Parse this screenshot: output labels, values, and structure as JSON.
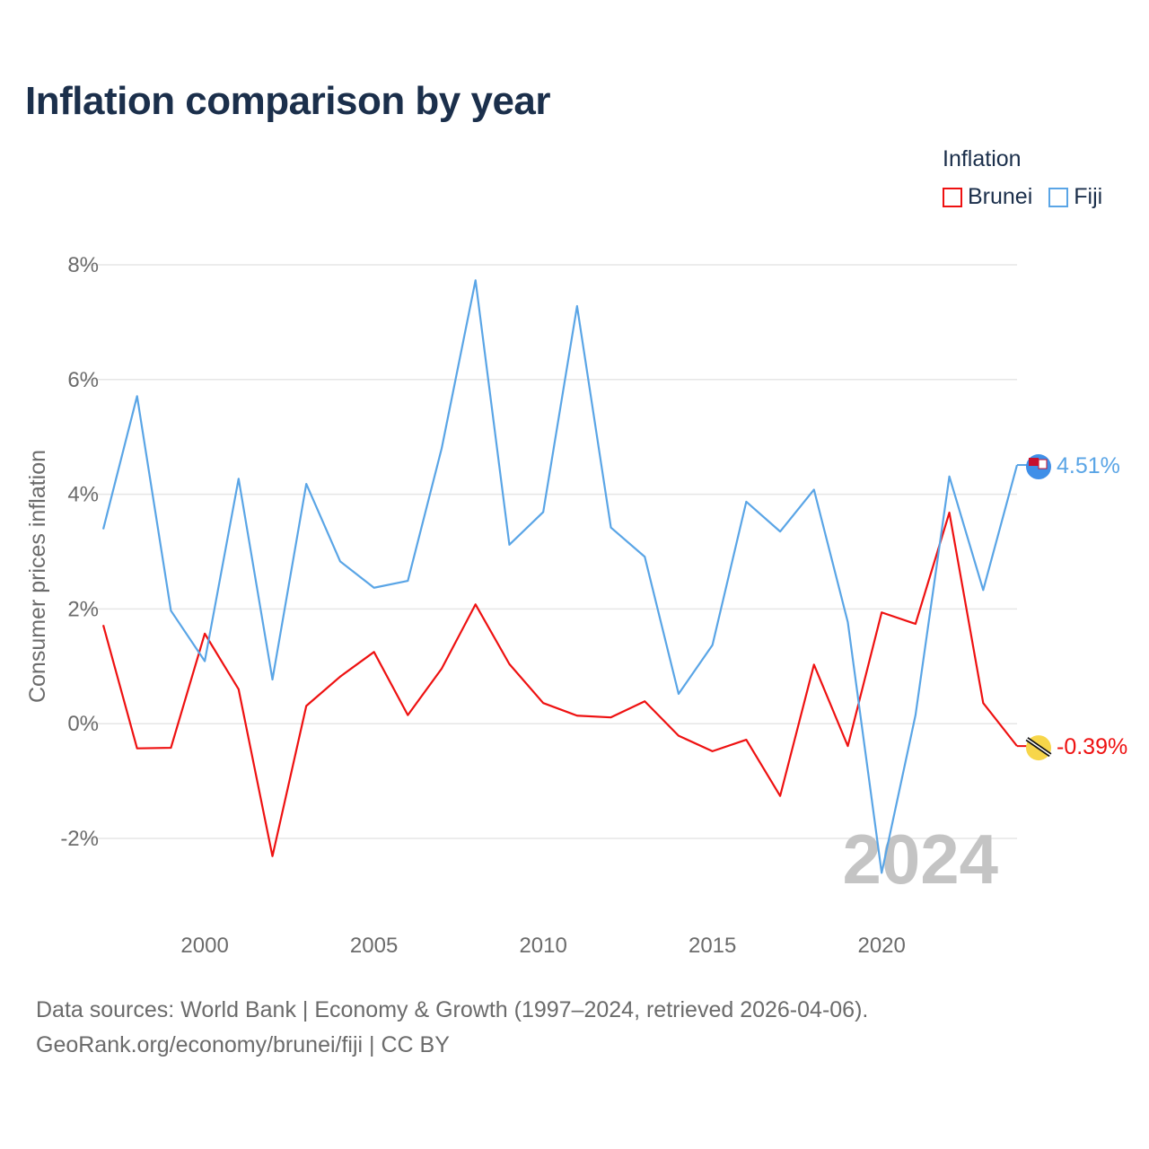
{
  "title": "Inflation comparison by year",
  "legend": {
    "title": "Inflation",
    "items": [
      {
        "label": "Brunei",
        "color": "#ee1111"
      },
      {
        "label": "Fiji",
        "color": "#5aa5e6"
      }
    ]
  },
  "source": {
    "line1": "Data sources: World Bank | Economy & Growth (1997–2024, retrieved 2026-04-06).",
    "line2": "GeoRank.org/economy/brunei/fiji | CC BY"
  },
  "chart_data": {
    "type": "line",
    "title": "Inflation comparison by year",
    "xlabel": "",
    "ylabel": "Consumer prices inflation",
    "ylim": [
      -3,
      8.5
    ],
    "xlim": [
      1997,
      2024
    ],
    "yticks": [
      -2,
      0,
      2,
      4,
      6,
      8
    ],
    "ytick_labels": [
      "-2%",
      "0%",
      "2%",
      "4%",
      "6%",
      "8%"
    ],
    "xticks": [
      2000,
      2005,
      2010,
      2015,
      2020
    ],
    "xtick_labels": [
      "2000",
      "2005",
      "2010",
      "2015",
      "2020"
    ],
    "grid": true,
    "watermark_year": "2024",
    "x": [
      1997,
      1998,
      1999,
      2000,
      2001,
      2002,
      2003,
      2004,
      2005,
      2006,
      2007,
      2008,
      2009,
      2010,
      2011,
      2012,
      2013,
      2014,
      2015,
      2016,
      2017,
      2018,
      2019,
      2020,
      2021,
      2022,
      2023,
      2024
    ],
    "series": [
      {
        "name": "Brunei",
        "color": "#ee1111",
        "end_label": "-0.39%",
        "values": [
          1.72,
          -0.43,
          -0.42,
          1.57,
          0.6,
          -2.31,
          0.31,
          0.82,
          1.25,
          0.15,
          0.96,
          2.08,
          1.04,
          0.36,
          0.14,
          0.11,
          0.39,
          -0.21,
          -0.48,
          -0.28,
          -1.26,
          1.03,
          -0.39,
          1.94,
          1.74,
          3.68,
          0.36,
          -0.39
        ]
      },
      {
        "name": "Fiji",
        "color": "#5aa5e6",
        "end_label": "4.51%",
        "values": [
          3.39,
          5.71,
          1.97,
          1.09,
          4.27,
          0.77,
          4.18,
          2.83,
          2.37,
          2.49,
          4.8,
          7.73,
          3.12,
          3.69,
          7.28,
          3.42,
          2.91,
          0.52,
          1.37,
          3.87,
          3.35,
          4.08,
          1.77,
          -2.6,
          0.15,
          4.31,
          2.33,
          4.51
        ]
      }
    ]
  }
}
